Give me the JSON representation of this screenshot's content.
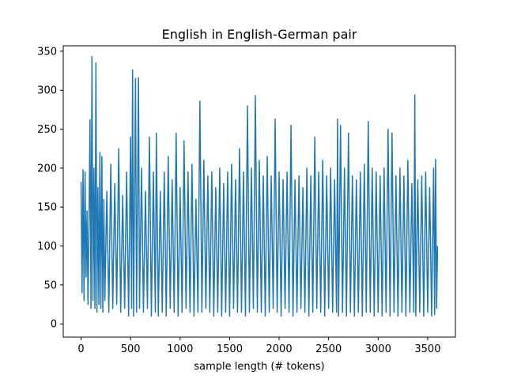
{
  "chart_data": {
    "type": "line",
    "title": "English in English-German pair",
    "xlabel": "sample length (# tokens)",
    "ylabel": "",
    "xlim": [
      -180,
      3780
    ],
    "ylim": [
      -17,
      357
    ],
    "xticks": [
      0,
      500,
      1000,
      1500,
      2000,
      2500,
      3000,
      3500
    ],
    "yticks": [
      0,
      50,
      100,
      150,
      200,
      250,
      300,
      350
    ],
    "grid": false,
    "series": [
      {
        "color": "#1f77b4",
        "points": [
          [
            0,
            182
          ],
          [
            10,
            40
          ],
          [
            20,
            198
          ],
          [
            30,
            30
          ],
          [
            40,
            195
          ],
          [
            50,
            60
          ],
          [
            60,
            145
          ],
          [
            70,
            25
          ],
          [
            80,
            130
          ],
          [
            90,
            262
          ],
          [
            100,
            20
          ],
          [
            110,
            343
          ],
          [
            120,
            30
          ],
          [
            130,
            200
          ],
          [
            140,
            20
          ],
          [
            150,
            335
          ],
          [
            160,
            15
          ],
          [
            170,
            175
          ],
          [
            180,
            25
          ],
          [
            190,
            220
          ],
          [
            200,
            20
          ],
          [
            210,
            215
          ],
          [
            220,
            15
          ],
          [
            230,
            160
          ],
          [
            240,
            30
          ],
          [
            260,
            170
          ],
          [
            280,
            15
          ],
          [
            300,
            205
          ],
          [
            320,
            20
          ],
          [
            340,
            180
          ],
          [
            360,
            25
          ],
          [
            380,
            225
          ],
          [
            400,
            15
          ],
          [
            420,
            165
          ],
          [
            440,
            20
          ],
          [
            460,
            195
          ],
          [
            480,
            10
          ],
          [
            500,
            240
          ],
          [
            510,
            20
          ],
          [
            520,
            326
          ],
          [
            530,
            10
          ],
          [
            550,
            315
          ],
          [
            560,
            15
          ],
          [
            580,
            316
          ],
          [
            590,
            20
          ],
          [
            610,
            200
          ],
          [
            630,
            15
          ],
          [
            650,
            170
          ],
          [
            670,
            20
          ],
          [
            690,
            240
          ],
          [
            710,
            10
          ],
          [
            730,
            195
          ],
          [
            750,
            15
          ],
          [
            760,
            245
          ],
          [
            780,
            10
          ],
          [
            800,
            170
          ],
          [
            820,
            15
          ],
          [
            840,
            195
          ],
          [
            860,
            10
          ],
          [
            880,
            215
          ],
          [
            900,
            20
          ],
          [
            920,
            185
          ],
          [
            940,
            15
          ],
          [
            960,
            245
          ],
          [
            980,
            10
          ],
          [
            1000,
            175
          ],
          [
            1020,
            15
          ],
          [
            1040,
            235
          ],
          [
            1060,
            20
          ],
          [
            1080,
            195
          ],
          [
            1100,
            15
          ],
          [
            1120,
            205
          ],
          [
            1140,
            10
          ],
          [
            1160,
            160
          ],
          [
            1180,
            15
          ],
          [
            1200,
            286
          ],
          [
            1220,
            15
          ],
          [
            1240,
            210
          ],
          [
            1260,
            20
          ],
          [
            1280,
            190
          ],
          [
            1300,
            15
          ],
          [
            1320,
            195
          ],
          [
            1340,
            10
          ],
          [
            1360,
            175
          ],
          [
            1380,
            15
          ],
          [
            1400,
            200
          ],
          [
            1420,
            10
          ],
          [
            1440,
            180
          ],
          [
            1460,
            15
          ],
          [
            1480,
            195
          ],
          [
            1500,
            10
          ],
          [
            1520,
            205
          ],
          [
            1540,
            20
          ],
          [
            1560,
            185
          ],
          [
            1580,
            15
          ],
          [
            1600,
            225
          ],
          [
            1620,
            15
          ],
          [
            1640,
            195
          ],
          [
            1660,
            10
          ],
          [
            1680,
            280
          ],
          [
            1700,
            15
          ],
          [
            1720,
            200
          ],
          [
            1740,
            20
          ],
          [
            1760,
            293
          ],
          [
            1780,
            15
          ],
          [
            1800,
            210
          ],
          [
            1820,
            15
          ],
          [
            1840,
            190
          ],
          [
            1860,
            10
          ],
          [
            1880,
            215
          ],
          [
            1900,
            15
          ],
          [
            1920,
            190
          ],
          [
            1940,
            20
          ],
          [
            1960,
            263
          ],
          [
            1980,
            15
          ],
          [
            2000,
            195
          ],
          [
            2020,
            10
          ],
          [
            2040,
            185
          ],
          [
            2060,
            20
          ],
          [
            2080,
            195
          ],
          [
            2100,
            15
          ],
          [
            2120,
            255
          ],
          [
            2140,
            10
          ],
          [
            2160,
            185
          ],
          [
            2180,
            15
          ],
          [
            2200,
            190
          ],
          [
            2220,
            20
          ],
          [
            2240,
            175
          ],
          [
            2260,
            15
          ],
          [
            2280,
            200
          ],
          [
            2300,
            10
          ],
          [
            2320,
            190
          ],
          [
            2340,
            15
          ],
          [
            2360,
            240
          ],
          [
            2380,
            20
          ],
          [
            2400,
            195
          ],
          [
            2420,
            15
          ],
          [
            2440,
            210
          ],
          [
            2460,
            10
          ],
          [
            2480,
            190
          ],
          [
            2500,
            20
          ],
          [
            2520,
            200
          ],
          [
            2540,
            15
          ],
          [
            2560,
            185
          ],
          [
            2580,
            15
          ],
          [
            2590,
            263
          ],
          [
            2600,
            10
          ],
          [
            2620,
            255
          ],
          [
            2640,
            15
          ],
          [
            2660,
            200
          ],
          [
            2680,
            10
          ],
          [
            2700,
            245
          ],
          [
            2720,
            15
          ],
          [
            2740,
            190
          ],
          [
            2760,
            10
          ],
          [
            2780,
            185
          ],
          [
            2800,
            15
          ],
          [
            2820,
            195
          ],
          [
            2840,
            10
          ],
          [
            2860,
            205
          ],
          [
            2880,
            15
          ],
          [
            2900,
            260
          ],
          [
            2920,
            15
          ],
          [
            2940,
            200
          ],
          [
            2960,
            10
          ],
          [
            2980,
            195
          ],
          [
            3000,
            15
          ],
          [
            3020,
            190
          ],
          [
            3040,
            10
          ],
          [
            3060,
            200
          ],
          [
            3080,
            15
          ],
          [
            3100,
            250
          ],
          [
            3120,
            10
          ],
          [
            3140,
            245
          ],
          [
            3160,
            15
          ],
          [
            3180,
            190
          ],
          [
            3200,
            10
          ],
          [
            3220,
            200
          ],
          [
            3240,
            15
          ],
          [
            3260,
            190
          ],
          [
            3280,
            10
          ],
          [
            3300,
            210
          ],
          [
            3320,
            15
          ],
          [
            3340,
            180
          ],
          [
            3360,
            15
          ],
          [
            3370,
            294
          ],
          [
            3380,
            10
          ],
          [
            3400,
            185
          ],
          [
            3420,
            15
          ],
          [
            3440,
            190
          ],
          [
            3460,
            10
          ],
          [
            3480,
            195
          ],
          [
            3500,
            15
          ],
          [
            3520,
            175
          ],
          [
            3540,
            10
          ],
          [
            3560,
            200
          ],
          [
            3570,
            12
          ],
          [
            3580,
            211
          ],
          [
            3590,
            20
          ],
          [
            3600,
            100
          ]
        ]
      }
    ]
  }
}
